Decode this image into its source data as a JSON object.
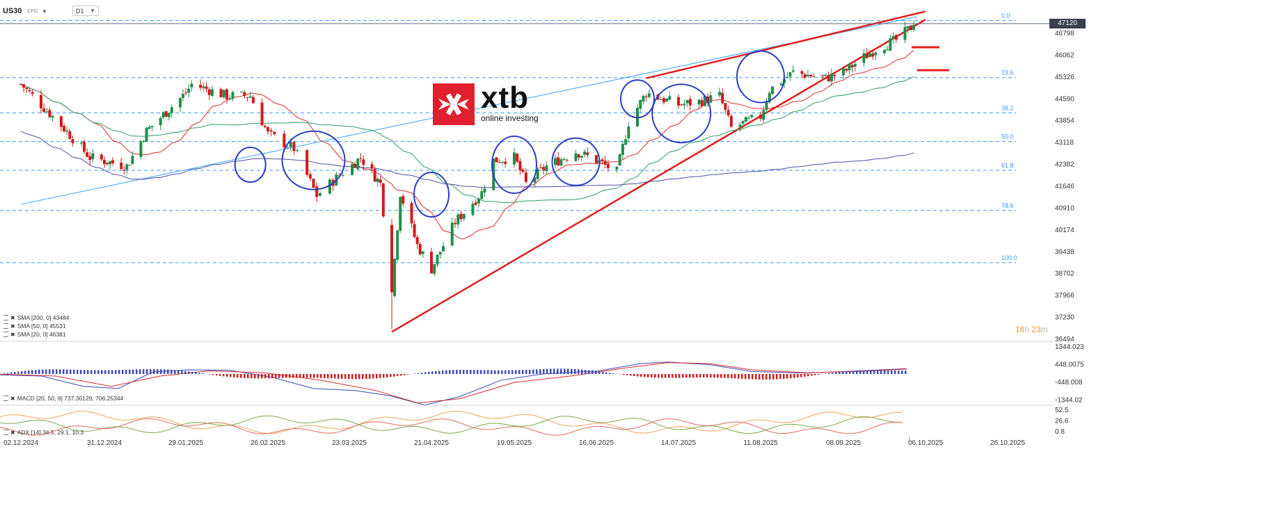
{
  "symbol": {
    "name": "US30",
    "sub": "CFD",
    "timeframe": "D1"
  },
  "logo": {
    "brand": "xtb",
    "tagline": "online investing"
  },
  "current_price": "47120",
  "timer": {
    "h": "16",
    "h_unit": "h",
    "m": "23",
    "m_unit": "m"
  },
  "indicators": [
    {
      "label": "SMA [200, 0] 43484"
    },
    {
      "label": "SMA [50, 0] 45531"
    },
    {
      "label": "SMA [20, 0] 46381"
    }
  ],
  "macd_label": "MACD [20, 50, 9] 737.30129,   706.25344",
  "adx_label": "ADX [14] 34.5,  29.1,  10.3",
  "colors": {
    "bull": "#1f8f4c",
    "bear": "#d21a1a",
    "sma20": "#e02a2a",
    "sma50": "#2e9a5f",
    "sma200": "#4a4fa8",
    "fib": "#3399ff",
    "wedge": "#e11d1d",
    "circle": "#2b3ec2",
    "trendline": "#3aa0ff",
    "macd_line": "#3a49b6",
    "macd_signal": "#d82a2a"
  },
  "chart_data": [
    {
      "type": "candlestick",
      "title": "US30",
      "timeframe": "D1",
      "x_ticks": [
        "02.12.2024",
        "31.12.2024",
        "29.01.2025",
        "26.02.2025",
        "23.03.2025",
        "21.04.2025",
        "19.05.2025",
        "16.06.2025",
        "14.07.2025",
        "11.08.2025",
        "08.09.2025",
        "06.10.2025",
        "26.10.2025"
      ],
      "y_ticks": [
        "46798",
        "46062",
        "45326",
        "44590",
        "43854",
        "43118",
        "42382",
        "41646",
        "40910",
        "40174",
        "39438",
        "38702",
        "37966",
        "37230",
        "36494"
      ],
      "ylim": [
        36494,
        47400
      ],
      "fibonacci": [
        {
          "label": "0.0",
          "price": 47270
        },
        {
          "label": "23.6",
          "price": 45320
        },
        {
          "label": "38.2",
          "price": 44120
        },
        {
          "label": "50.0",
          "price": 43140
        },
        {
          "label": "61.8",
          "price": 42160
        },
        {
          "label": "78.6",
          "price": 40790
        },
        {
          "label": "100.0",
          "price": 39010
        }
      ],
      "anchors": [
        {
          "date": "02.12.2024",
          "price": 45100
        },
        {
          "date": "16.12.2024",
          "price": 43700
        },
        {
          "date": "26.12.2024",
          "price": 42600
        },
        {
          "date": "08.01.2025",
          "price": 42300
        },
        {
          "date": "15.01.2025",
          "price": 43500
        },
        {
          "date": "29.01.2025",
          "price": 44800
        },
        {
          "date": "31.01.2025",
          "price": 45100
        },
        {
          "date": "12.02.2025",
          "price": 44700
        },
        {
          "date": "20.02.2025",
          "price": 44700
        },
        {
          "date": "26.02.2025",
          "price": 43400
        },
        {
          "date": "06.03.2025",
          "price": 42900
        },
        {
          "date": "13.03.2025",
          "price": 41300
        },
        {
          "date": "20.03.2025",
          "price": 42000
        },
        {
          "date": "27.03.2025",
          "price": 42600
        },
        {
          "date": "03.04.2025",
          "price": 41700
        },
        {
          "date": "07.04.2025",
          "price": 38000
        },
        {
          "date": "10.04.2025",
          "price": 41400
        },
        {
          "date": "16.04.2025",
          "price": 39600
        },
        {
          "date": "21.04.2025",
          "price": 38800
        },
        {
          "date": "29.04.2025",
          "price": 40400
        },
        {
          "date": "08.05.2025",
          "price": 41400
        },
        {
          "date": "12.05.2025",
          "price": 42500
        },
        {
          "date": "19.05.2025",
          "price": 42600
        },
        {
          "date": "23.05.2025",
          "price": 41700
        },
        {
          "date": "30.05.2025",
          "price": 42300
        },
        {
          "date": "09.06.2025",
          "price": 42800
        },
        {
          "date": "16.06.2025",
          "price": 42500
        },
        {
          "date": "23.06.2025",
          "price": 42100
        },
        {
          "date": "27.06.2025",
          "price": 43800
        },
        {
          "date": "03.07.2025",
          "price": 44800
        },
        {
          "date": "14.07.2025",
          "price": 44400
        },
        {
          "date": "21.07.2025",
          "price": 44500
        },
        {
          "date": "28.07.2025",
          "price": 44700
        },
        {
          "date": "01.08.2025",
          "price": 43600
        },
        {
          "date": "11.08.2025",
          "price": 44000
        },
        {
          "date": "14.08.2025",
          "price": 44900
        },
        {
          "date": "22.08.2025",
          "price": 45500
        },
        {
          "date": "02.09.2025",
          "price": 45300
        },
        {
          "date": "08.09.2025",
          "price": 45500
        },
        {
          "date": "12.09.2025",
          "price": 45800
        },
        {
          "date": "19.09.2025",
          "price": 46300
        },
        {
          "date": "26.09.2025",
          "price": 46600
        },
        {
          "date": "02.10.2025",
          "price": 47120
        }
      ]
    },
    {
      "type": "line",
      "title": "MACD [20, 50, 9]",
      "y_ticks": [
        "1344.023",
        "448.0075",
        "-448.008",
        "-1344.02"
      ],
      "ylim": [
        -1344.02,
        1344.023
      ],
      "values": [
        737.30129,
        706.25344
      ]
    },
    {
      "type": "line",
      "title": "ADX [14]",
      "y_ticks": [
        "52.5",
        "26.6",
        "0.8"
      ],
      "ylim": [
        0.8,
        52.5
      ],
      "values": [
        34.5,
        29.1,
        10.3
      ]
    }
  ]
}
